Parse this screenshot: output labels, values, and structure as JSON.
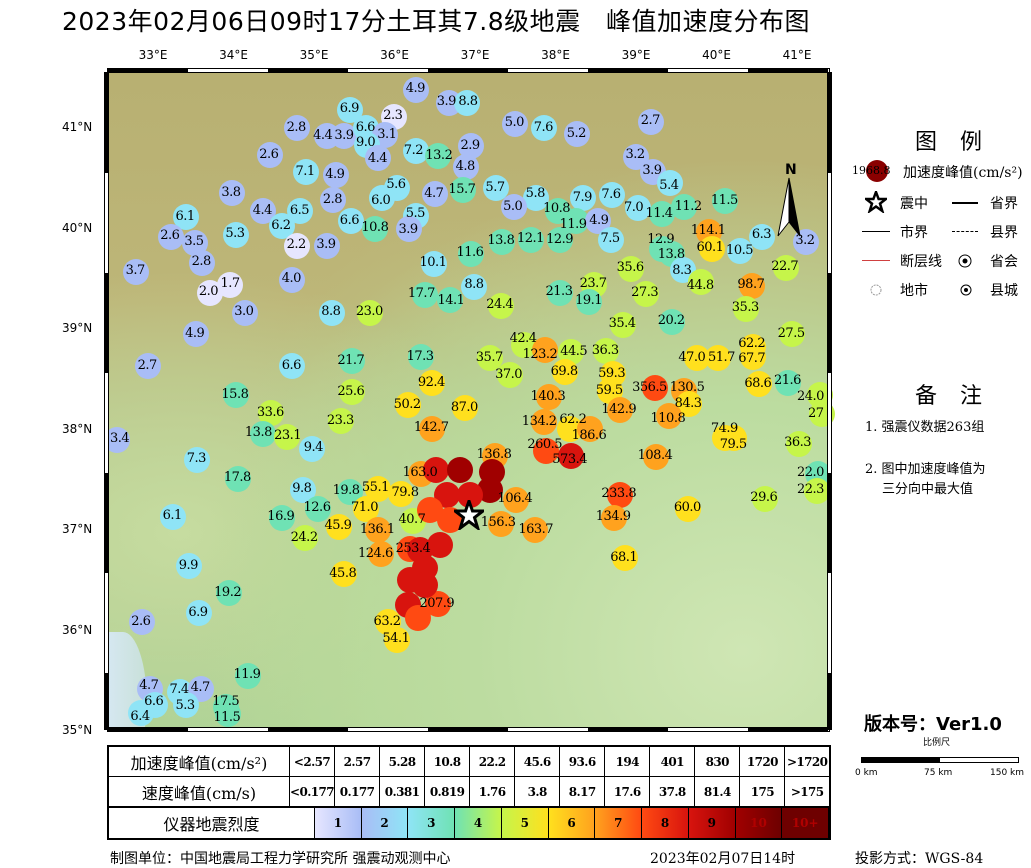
{
  "title": "2023年02月06日09时17分土耳其7.8级地震   峰值加速度分布图",
  "map": {
    "lon_ticks": [
      "33°E",
      "34°E",
      "35°E",
      "36°E",
      "37°E",
      "38°E",
      "39°E",
      "40°E",
      "41°E"
    ],
    "lon_values": [
      33,
      34,
      35,
      36,
      37,
      38,
      39,
      40,
      41
    ],
    "lat_ticks": [
      "41°N",
      "40°N",
      "39°N",
      "38°N",
      "37°N",
      "36°N",
      "35°N"
    ],
    "lat_values": [
      41,
      40,
      39,
      38,
      37,
      36,
      35
    ],
    "extent": {
      "lon": [
        32.32,
        41.3
      ],
      "lat": [
        35.03,
        41.58
      ]
    },
    "epicenter": {
      "lon": 36.92,
      "lat": 37.14
    },
    "north_label": "N",
    "stations": [
      [
        36.27,
        41.37,
        "4.9"
      ],
      [
        36.68,
        41.24,
        "3.9"
      ],
      [
        36.9,
        41.24,
        "8.8"
      ],
      [
        35.45,
        41.17,
        "6.9"
      ],
      [
        35.99,
        41.1,
        "2.3"
      ],
      [
        37.5,
        41.03,
        "5.0"
      ],
      [
        37.86,
        40.99,
        "7.6"
      ],
      [
        38.27,
        40.93,
        "5.2"
      ],
      [
        39.19,
        41.05,
        "2.7"
      ],
      [
        34.79,
        40.99,
        "2.8"
      ],
      [
        35.16,
        40.91,
        "4.4"
      ],
      [
        35.37,
        40.91,
        "3.9"
      ],
      [
        35.65,
        40.99,
        "6.6"
      ],
      [
        35.88,
        40.92,
        "3.1"
      ],
      [
        35.66,
        40.82,
        "9.0"
      ],
      [
        36.95,
        40.81,
        "2.9"
      ],
      [
        36.27,
        40.76,
        "7.2"
      ],
      [
        36.54,
        40.71,
        "13.2"
      ],
      [
        34.45,
        40.72,
        "2.6"
      ],
      [
        35.8,
        40.69,
        "4.4"
      ],
      [
        36.89,
        40.6,
        "4.8"
      ],
      [
        34.9,
        40.55,
        "7.1"
      ],
      [
        35.27,
        40.52,
        "4.9"
      ],
      [
        39.0,
        40.7,
        "3.2"
      ],
      [
        39.21,
        40.55,
        "3.9"
      ],
      [
        39.42,
        40.44,
        "5.4"
      ],
      [
        33.98,
        40.34,
        "3.8"
      ],
      [
        36.03,
        40.39,
        "5.6"
      ],
      [
        36.85,
        40.37,
        "15.7"
      ],
      [
        37.26,
        40.39,
        "5.7"
      ],
      [
        36.5,
        40.33,
        "4.7"
      ],
      [
        35.84,
        40.29,
        "6.0"
      ],
      [
        35.24,
        40.27,
        "2.8"
      ],
      [
        37.76,
        40.29,
        "5.8"
      ],
      [
        38.34,
        40.29,
        "7.9"
      ],
      [
        38.7,
        40.32,
        "7.6"
      ],
      [
        40.11,
        40.26,
        "11.5"
      ],
      [
        37.48,
        40.2,
        "5.0"
      ],
      [
        38.03,
        40.16,
        "10.8"
      ],
      [
        38.25,
        40.06,
        "11.9"
      ],
      [
        38.53,
        40.06,
        "4.9"
      ],
      [
        39.02,
        40.19,
        "7.0"
      ],
      [
        39.32,
        40.13,
        "11.4"
      ],
      [
        39.6,
        40.2,
        "11.2"
      ],
      [
        33.41,
        40.1,
        "6.1"
      ],
      [
        34.37,
        40.16,
        "4.4"
      ],
      [
        34.83,
        40.16,
        "6.5"
      ],
      [
        34.6,
        40.01,
        "6.2"
      ],
      [
        36.27,
        40.11,
        "5.5"
      ],
      [
        35.46,
        40.06,
        "6.6"
      ],
      [
        35.76,
        39.99,
        "10.8"
      ],
      [
        36.18,
        39.99,
        "3.9"
      ],
      [
        34.03,
        39.93,
        "5.3"
      ],
      [
        33.22,
        39.91,
        "2.6"
      ],
      [
        33.52,
        39.85,
        "3.5"
      ],
      [
        34.79,
        39.82,
        "2.2"
      ],
      [
        35.16,
        39.82,
        "3.9"
      ],
      [
        33.61,
        39.65,
        "2.8"
      ],
      [
        39.91,
        39.96,
        "114.1"
      ],
      [
        39.94,
        39.79,
        "60.1"
      ],
      [
        40.57,
        39.91,
        "6.3"
      ],
      [
        40.29,
        39.77,
        "10.5"
      ],
      [
        39.32,
        39.79,
        "12.9"
      ],
      [
        39.45,
        39.74,
        "13.8"
      ],
      [
        39.58,
        39.58,
        "8.3"
      ],
      [
        40.86,
        39.6,
        "22.7"
      ],
      [
        41.11,
        39.86,
        "3.2"
      ],
      [
        37.7,
        39.88,
        "12.1"
      ],
      [
        38.06,
        39.88,
        "12.9"
      ],
      [
        38.69,
        39.88,
        "7.5"
      ],
      [
        37.34,
        39.86,
        "13.8"
      ],
      [
        36.95,
        39.74,
        "11.6"
      ],
      [
        36.49,
        39.64,
        "10.1"
      ],
      [
        38.94,
        39.59,
        "35.6"
      ],
      [
        32.79,
        39.56,
        "3.7"
      ],
      [
        33.71,
        39.35,
        "2.0"
      ],
      [
        33.96,
        39.43,
        "1.7"
      ],
      [
        34.73,
        39.48,
        "4.0"
      ],
      [
        36.99,
        39.41,
        "8.8"
      ],
      [
        36.38,
        39.33,
        "17.7"
      ],
      [
        36.69,
        39.28,
        "14.1"
      ],
      [
        38.48,
        39.43,
        "23.7"
      ],
      [
        38.06,
        39.35,
        "21.3"
      ],
      [
        38.42,
        39.26,
        "19.1"
      ],
      [
        39.12,
        39.34,
        "27.3"
      ],
      [
        39.81,
        39.46,
        "44.8"
      ],
      [
        40.44,
        39.42,
        "98.7"
      ],
      [
        37.32,
        39.22,
        "24.4"
      ],
      [
        34.14,
        39.15,
        "3.0"
      ],
      [
        35.22,
        39.15,
        "8.8"
      ],
      [
        35.7,
        39.15,
        "23.0"
      ],
      [
        40.37,
        39.19,
        "35.3"
      ],
      [
        38.84,
        39.03,
        "35.4"
      ],
      [
        39.45,
        39.06,
        "20.2"
      ],
      [
        40.94,
        38.94,
        "27.5"
      ],
      [
        33.53,
        38.94,
        "4.9"
      ],
      [
        37.61,
        38.83,
        "42.4"
      ],
      [
        37.87,
        38.78,
        "123.2"
      ],
      [
        38.19,
        38.76,
        "44.5"
      ],
      [
        38.63,
        38.77,
        "36.3"
      ],
      [
        40.45,
        38.81,
        "62.2"
      ],
      [
        35.47,
        38.67,
        "21.7"
      ],
      [
        36.33,
        38.71,
        "17.3"
      ],
      [
        37.19,
        38.7,
        "35.7"
      ],
      [
        39.76,
        38.7,
        "47.0"
      ],
      [
        40.02,
        38.7,
        "51.7"
      ],
      [
        40.45,
        38.71,
        "67.7"
      ],
      [
        32.94,
        38.62,
        "2.7"
      ],
      [
        34.73,
        38.62,
        "6.6"
      ],
      [
        37.43,
        38.53,
        "37.0"
      ],
      [
        38.12,
        38.56,
        "69.8"
      ],
      [
        38.71,
        38.54,
        "59.3"
      ],
      [
        35.47,
        38.36,
        "25.6"
      ],
      [
        36.47,
        38.45,
        "92.4"
      ],
      [
        39.23,
        38.4,
        "356.5"
      ],
      [
        39.6,
        38.37,
        "130.5"
      ],
      [
        40.53,
        38.44,
        "68.6"
      ],
      [
        40.89,
        38.45,
        "21.6"
      ],
      [
        38.68,
        38.37,
        "59.5"
      ],
      [
        37.92,
        38.31,
        "140.3"
      ],
      [
        39.66,
        38.24,
        "84.3"
      ],
      [
        41.29,
        38.33,
        "24.0"
      ],
      [
        34.03,
        38.33,
        "15.8"
      ],
      [
        36.17,
        38.23,
        "50.2"
      ],
      [
        36.88,
        38.2,
        "87.0"
      ],
      [
        38.8,
        38.18,
        "142.9"
      ],
      [
        39.41,
        38.12,
        "110.8"
      ],
      [
        41.31,
        38.14,
        "27"
      ],
      [
        34.47,
        38.15,
        "33.6"
      ],
      [
        35.34,
        38.07,
        "23.3"
      ],
      [
        37.86,
        38.06,
        "134.2"
      ],
      [
        38.18,
        38.0,
        "62.2"
      ],
      [
        38.43,
        38.0,
        "186.6"
      ],
      [
        36.47,
        38.0,
        "142.7"
      ],
      [
        34.37,
        37.95,
        "13.8"
      ],
      [
        34.66,
        37.92,
        "23.1"
      ],
      [
        40.11,
        37.91,
        "74.9"
      ],
      [
        40.22,
        37.91,
        "79.5"
      ],
      [
        41.02,
        37.85,
        "36.3"
      ],
      [
        32.55,
        37.89,
        "3.4"
      ],
      [
        34.98,
        37.8,
        "9.4"
      ],
      [
        37.88,
        37.78,
        "260.5"
      ],
      [
        38.19,
        37.73,
        "573.4"
      ],
      [
        39.25,
        37.72,
        "108.4"
      ],
      [
        37.25,
        37.73,
        "136.8"
      ],
      [
        33.55,
        37.69,
        "7.3"
      ],
      [
        36.33,
        37.55,
        "163.0"
      ],
      [
        41.26,
        37.55,
        "22.0"
      ],
      [
        41.25,
        37.38,
        "22.3"
      ],
      [
        34.06,
        37.5,
        "17.8"
      ],
      [
        35.8,
        37.4,
        "55.1"
      ],
      [
        36.08,
        37.35,
        "79.8"
      ],
      [
        35.45,
        37.37,
        "19.8"
      ],
      [
        34.86,
        37.39,
        "9.8"
      ],
      [
        38.8,
        37.34,
        "233.8"
      ],
      [
        37.51,
        37.29,
        "106.4"
      ],
      [
        40.6,
        37.3,
        "29.6"
      ],
      [
        35.64,
        37.2,
        "71.0"
      ],
      [
        35.05,
        37.2,
        "12.6"
      ],
      [
        33.25,
        37.12,
        "6.1"
      ],
      [
        39.65,
        37.2,
        "60.0"
      ],
      [
        38.73,
        37.11,
        "134.9"
      ],
      [
        34.6,
        37.11,
        "16.9"
      ],
      [
        37.32,
        37.05,
        "156.3"
      ],
      [
        37.75,
        36.99,
        "163.7"
      ],
      [
        36.23,
        37.08,
        "40.7"
      ],
      [
        35.31,
        37.02,
        "45.9"
      ],
      [
        34.89,
        36.91,
        "24.2"
      ],
      [
        35.8,
        36.99,
        "136.1"
      ],
      [
        35.83,
        36.75,
        "124.6"
      ],
      [
        36.19,
        36.8,
        "253.4"
      ],
      [
        38.86,
        36.71,
        "68.1"
      ],
      [
        33.45,
        36.63,
        "9.9"
      ],
      [
        35.37,
        36.55,
        "45.8"
      ],
      [
        33.94,
        36.36,
        "19.2"
      ],
      [
        36.54,
        36.25,
        "207.9"
      ],
      [
        33.57,
        36.16,
        "6.9"
      ],
      [
        32.86,
        36.07,
        "2.6"
      ],
      [
        35.92,
        36.07,
        "63.2"
      ],
      [
        36.03,
        35.9,
        "54.1"
      ],
      [
        34.18,
        35.54,
        "11.9"
      ],
      [
        32.96,
        35.41,
        "4.7"
      ],
      [
        33.34,
        35.38,
        "7.4"
      ],
      [
        33.6,
        35.41,
        "4.7"
      ],
      [
        33.02,
        35.25,
        "6.6"
      ],
      [
        33.41,
        35.25,
        "5.3"
      ],
      [
        33.91,
        35.23,
        "17.5"
      ],
      [
        32.85,
        35.17,
        "6.4"
      ],
      [
        33.93,
        35.16,
        "11.5"
      ]
    ],
    "near_field_intensity": [
      [
        36.52,
        37.59,
        9
      ],
      [
        36.81,
        37.59,
        10
      ],
      [
        37.21,
        37.57,
        10
      ],
      [
        37.19,
        37.39,
        10
      ],
      [
        36.94,
        37.34,
        9
      ],
      [
        36.65,
        37.34,
        9
      ],
      [
        36.44,
        37.19,
        8
      ],
      [
        36.69,
        37.09,
        8
      ],
      [
        36.57,
        36.84,
        9
      ],
      [
        36.32,
        36.79,
        9
      ],
      [
        36.38,
        36.61,
        9
      ],
      [
        36.19,
        36.49,
        9
      ],
      [
        36.38,
        36.44,
        9
      ],
      [
        36.17,
        36.24,
        9
      ],
      [
        36.29,
        36.11,
        8
      ]
    ]
  },
  "legend": {
    "title": "图 例",
    "sample_value": "1968.8",
    "pga_label": "加速度峰值(cm/s²)",
    "epicenter": "震中",
    "province_border": "省界",
    "city_border": "市界",
    "county_border": "县界",
    "fault": "断层线",
    "provincial_capital": "省会",
    "prefecture_city": "地市",
    "county_town": "县城"
  },
  "notes": {
    "title": "备 注",
    "items": [
      "1. 强震仪数据263组",
      "2. 图中加速度峰值为",
      "三分向中最大值"
    ]
  },
  "version": "版本号：Ver1.0",
  "scale_bar": {
    "title": "比例尺",
    "labels": [
      "0 km",
      "75 km",
      "150 km"
    ]
  },
  "table": {
    "pga_header": "加速度峰值(cm/s²)",
    "pga": [
      "<2.57",
      "2.57",
      "5.28",
      "10.8",
      "22.2",
      "45.6",
      "93.6",
      "194",
      "401",
      "830",
      "1720",
      ">1720"
    ],
    "pga_thresholds": [
      2.57,
      5.28,
      10.8,
      22.2,
      45.6,
      93.6,
      194,
      401,
      830,
      1720
    ],
    "pgv_header": "速度峰值(cm/s)",
    "pgv": [
      "<0.177",
      "0.177",
      "0.381",
      "0.819",
      "1.76",
      "3.8",
      "8.17",
      "17.6",
      "37.8",
      "81.4",
      "175",
      ">175"
    ],
    "intensity_header": "仪器地震烈度",
    "intensity": [
      "1",
      "2",
      "3",
      "4",
      "5",
      "6",
      "7",
      "8",
      "9",
      "10",
      "10+"
    ],
    "colors": [
      "#e6e6ff",
      "#a9bdf6",
      "#8fe4f6",
      "#6fe2b4",
      "#c6f54a",
      "#ffe01e",
      "#ffa21e",
      "#ff4a12",
      "#d8140e",
      "#a00000",
      "#6e0000"
    ]
  },
  "footer": {
    "unit": "制图单位：中国地震局工程力学研究所 强震动观测中心",
    "date": "2023年02月07日14时",
    "projection": "投影方式：WGS-84"
  }
}
